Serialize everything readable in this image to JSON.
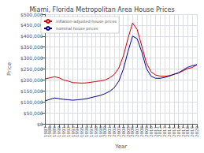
{
  "chart_data": {
    "type": "line",
    "title": "Miami, Florida Metropolitan Area House Prices",
    "x_label": "Year",
    "y_label": "Price",
    "x": [
      1987,
      1988,
      1989,
      1990,
      1991,
      1992,
      1993,
      1994,
      1995,
      1996,
      1997,
      1998,
      1999,
      2000,
      2001,
      2002,
      2003,
      2004,
      2005,
      2006,
      2007,
      2008,
      2009,
      2010,
      2011,
      2012,
      2013,
      2014,
      2015,
      2016,
      2017,
      2018,
      2019,
      2020
    ],
    "series": [
      {
        "name": "inflation-adjusted house prices",
        "color": "#cc0000",
        "values": [
          205000,
          210000,
          215000,
          210000,
          200000,
          195000,
          188000,
          187000,
          186000,
          187000,
          190000,
          193000,
          196000,
          200000,
          210000,
          225000,
          255000,
          310000,
          390000,
          460000,
          430000,
          355000,
          278000,
          238000,
          223000,
          218000,
          217000,
          220000,
          226000,
          232000,
          242000,
          252000,
          257000,
          270000
        ]
      },
      {
        "name": "nominal house prices",
        "color": "#00008b",
        "values": [
          105000,
          112000,
          118000,
          115000,
          112000,
          110000,
          108000,
          110000,
          112000,
          115000,
          120000,
          125000,
          130000,
          138000,
          148000,
          165000,
          195000,
          250000,
          330000,
          400000,
          388000,
          328000,
          253000,
          218000,
          208000,
          208000,
          212000,
          218000,
          226000,
          233000,
          246000,
          258000,
          265000,
          270000
        ]
      }
    ],
    "xlim": [
      1987,
      2020
    ],
    "xticks": [
      1987,
      1988,
      1989,
      1990,
      1991,
      1992,
      1993,
      1994,
      1995,
      1996,
      1997,
      1998,
      1999,
      2000,
      2001,
      2002,
      2003,
      2004,
      2005,
      2006,
      2007,
      2008,
      2009,
      2010,
      2011,
      2012,
      2013,
      2014,
      2015,
      2016,
      2017,
      2018,
      2019,
      2020
    ],
    "ylim": [
      0,
      500000
    ],
    "yticks": [
      {
        "value": 0,
        "label": "$0"
      },
      {
        "value": 50000,
        "label": "$50,000"
      },
      {
        "value": 100000,
        "label": "$100,000"
      },
      {
        "value": 150000,
        "label": "$150,000"
      },
      {
        "value": 200000,
        "label": "$200,000"
      },
      {
        "value": 250000,
        "label": "$250,000"
      },
      {
        "value": 300000,
        "label": "$300,000"
      },
      {
        "value": 350000,
        "label": "$350,000"
      },
      {
        "value": 400000,
        "label": "$400,000"
      },
      {
        "value": 450000,
        "label": "$450,000"
      },
      {
        "value": 500000,
        "label": "$500,000"
      }
    ],
    "grid": true,
    "legend": "upper left"
  }
}
